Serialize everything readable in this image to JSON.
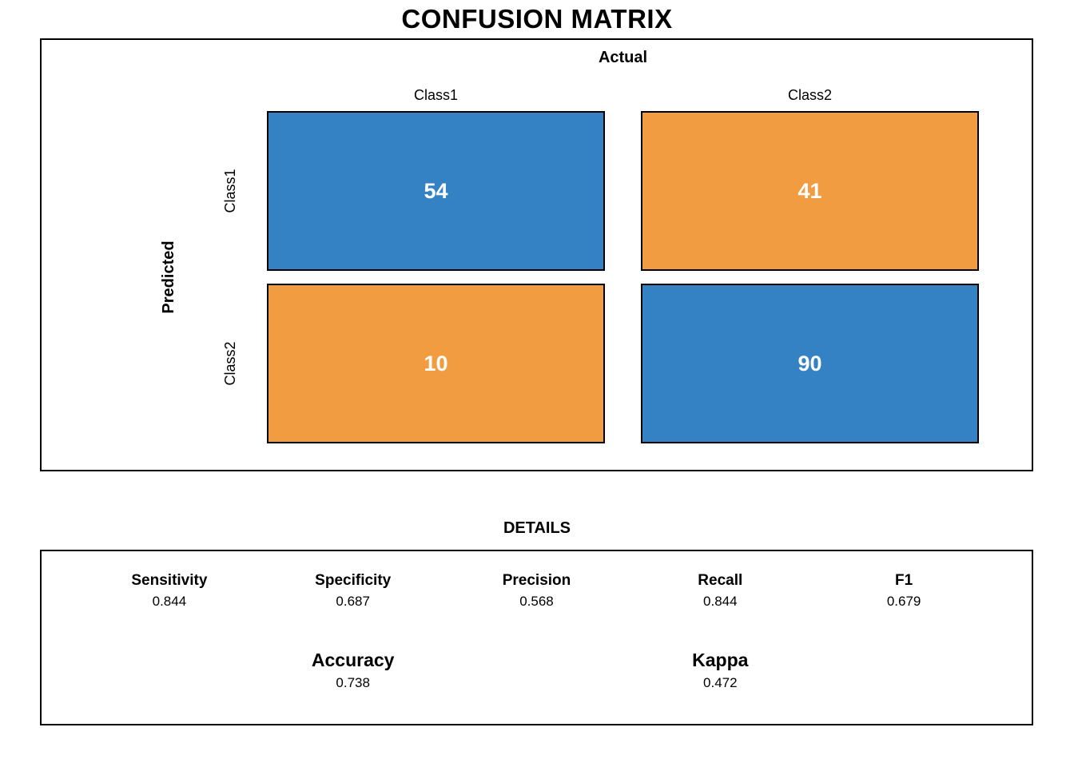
{
  "title": "CONFUSION MATRIX",
  "colors": {
    "blue": "#3482c3",
    "orange": "#f29c42",
    "cell_text": "#ffffff",
    "border": "#000000"
  },
  "matrix": {
    "x_axis_label": "Actual",
    "y_axis_label": "Predicted",
    "col_labels": [
      "Class1",
      "Class2"
    ],
    "row_labels": [
      "Class1",
      "Class2"
    ],
    "cells": [
      {
        "row": "Class1",
        "col": "Class1",
        "value": "54",
        "color": "blue"
      },
      {
        "row": "Class1",
        "col": "Class2",
        "value": "41",
        "color": "orange"
      },
      {
        "row": "Class2",
        "col": "Class1",
        "value": "10",
        "color": "orange"
      },
      {
        "row": "Class2",
        "col": "Class2",
        "value": "90",
        "color": "blue"
      }
    ]
  },
  "details": {
    "title": "DETAILS",
    "metrics_row1": [
      {
        "label": "Sensitivity",
        "value": "0.844"
      },
      {
        "label": "Specificity",
        "value": "0.687"
      },
      {
        "label": "Precision",
        "value": "0.568"
      },
      {
        "label": "Recall",
        "value": "0.844"
      },
      {
        "label": "F1",
        "value": "0.679"
      }
    ],
    "metrics_row2": [
      {
        "label": "Accuracy",
        "value": "0.738"
      },
      {
        "label": "Kappa",
        "value": "0.472"
      }
    ]
  },
  "chart_data": {
    "type": "heatmap",
    "title": "CONFUSION MATRIX",
    "xlabel": "Actual",
    "ylabel": "Predicted",
    "x_categories": [
      "Class1",
      "Class2"
    ],
    "y_categories": [
      "Class1",
      "Class2"
    ],
    "values": [
      [
        54,
        41
      ],
      [
        10,
        90
      ]
    ],
    "cell_colors": [
      [
        "blue",
        "orange"
      ],
      [
        "orange",
        "blue"
      ]
    ],
    "legend_position": "none",
    "grid": false,
    "stats": {
      "Sensitivity": 0.844,
      "Specificity": 0.687,
      "Precision": 0.568,
      "Recall": 0.844,
      "F1": 0.679,
      "Accuracy": 0.738,
      "Kappa": 0.472
    }
  }
}
